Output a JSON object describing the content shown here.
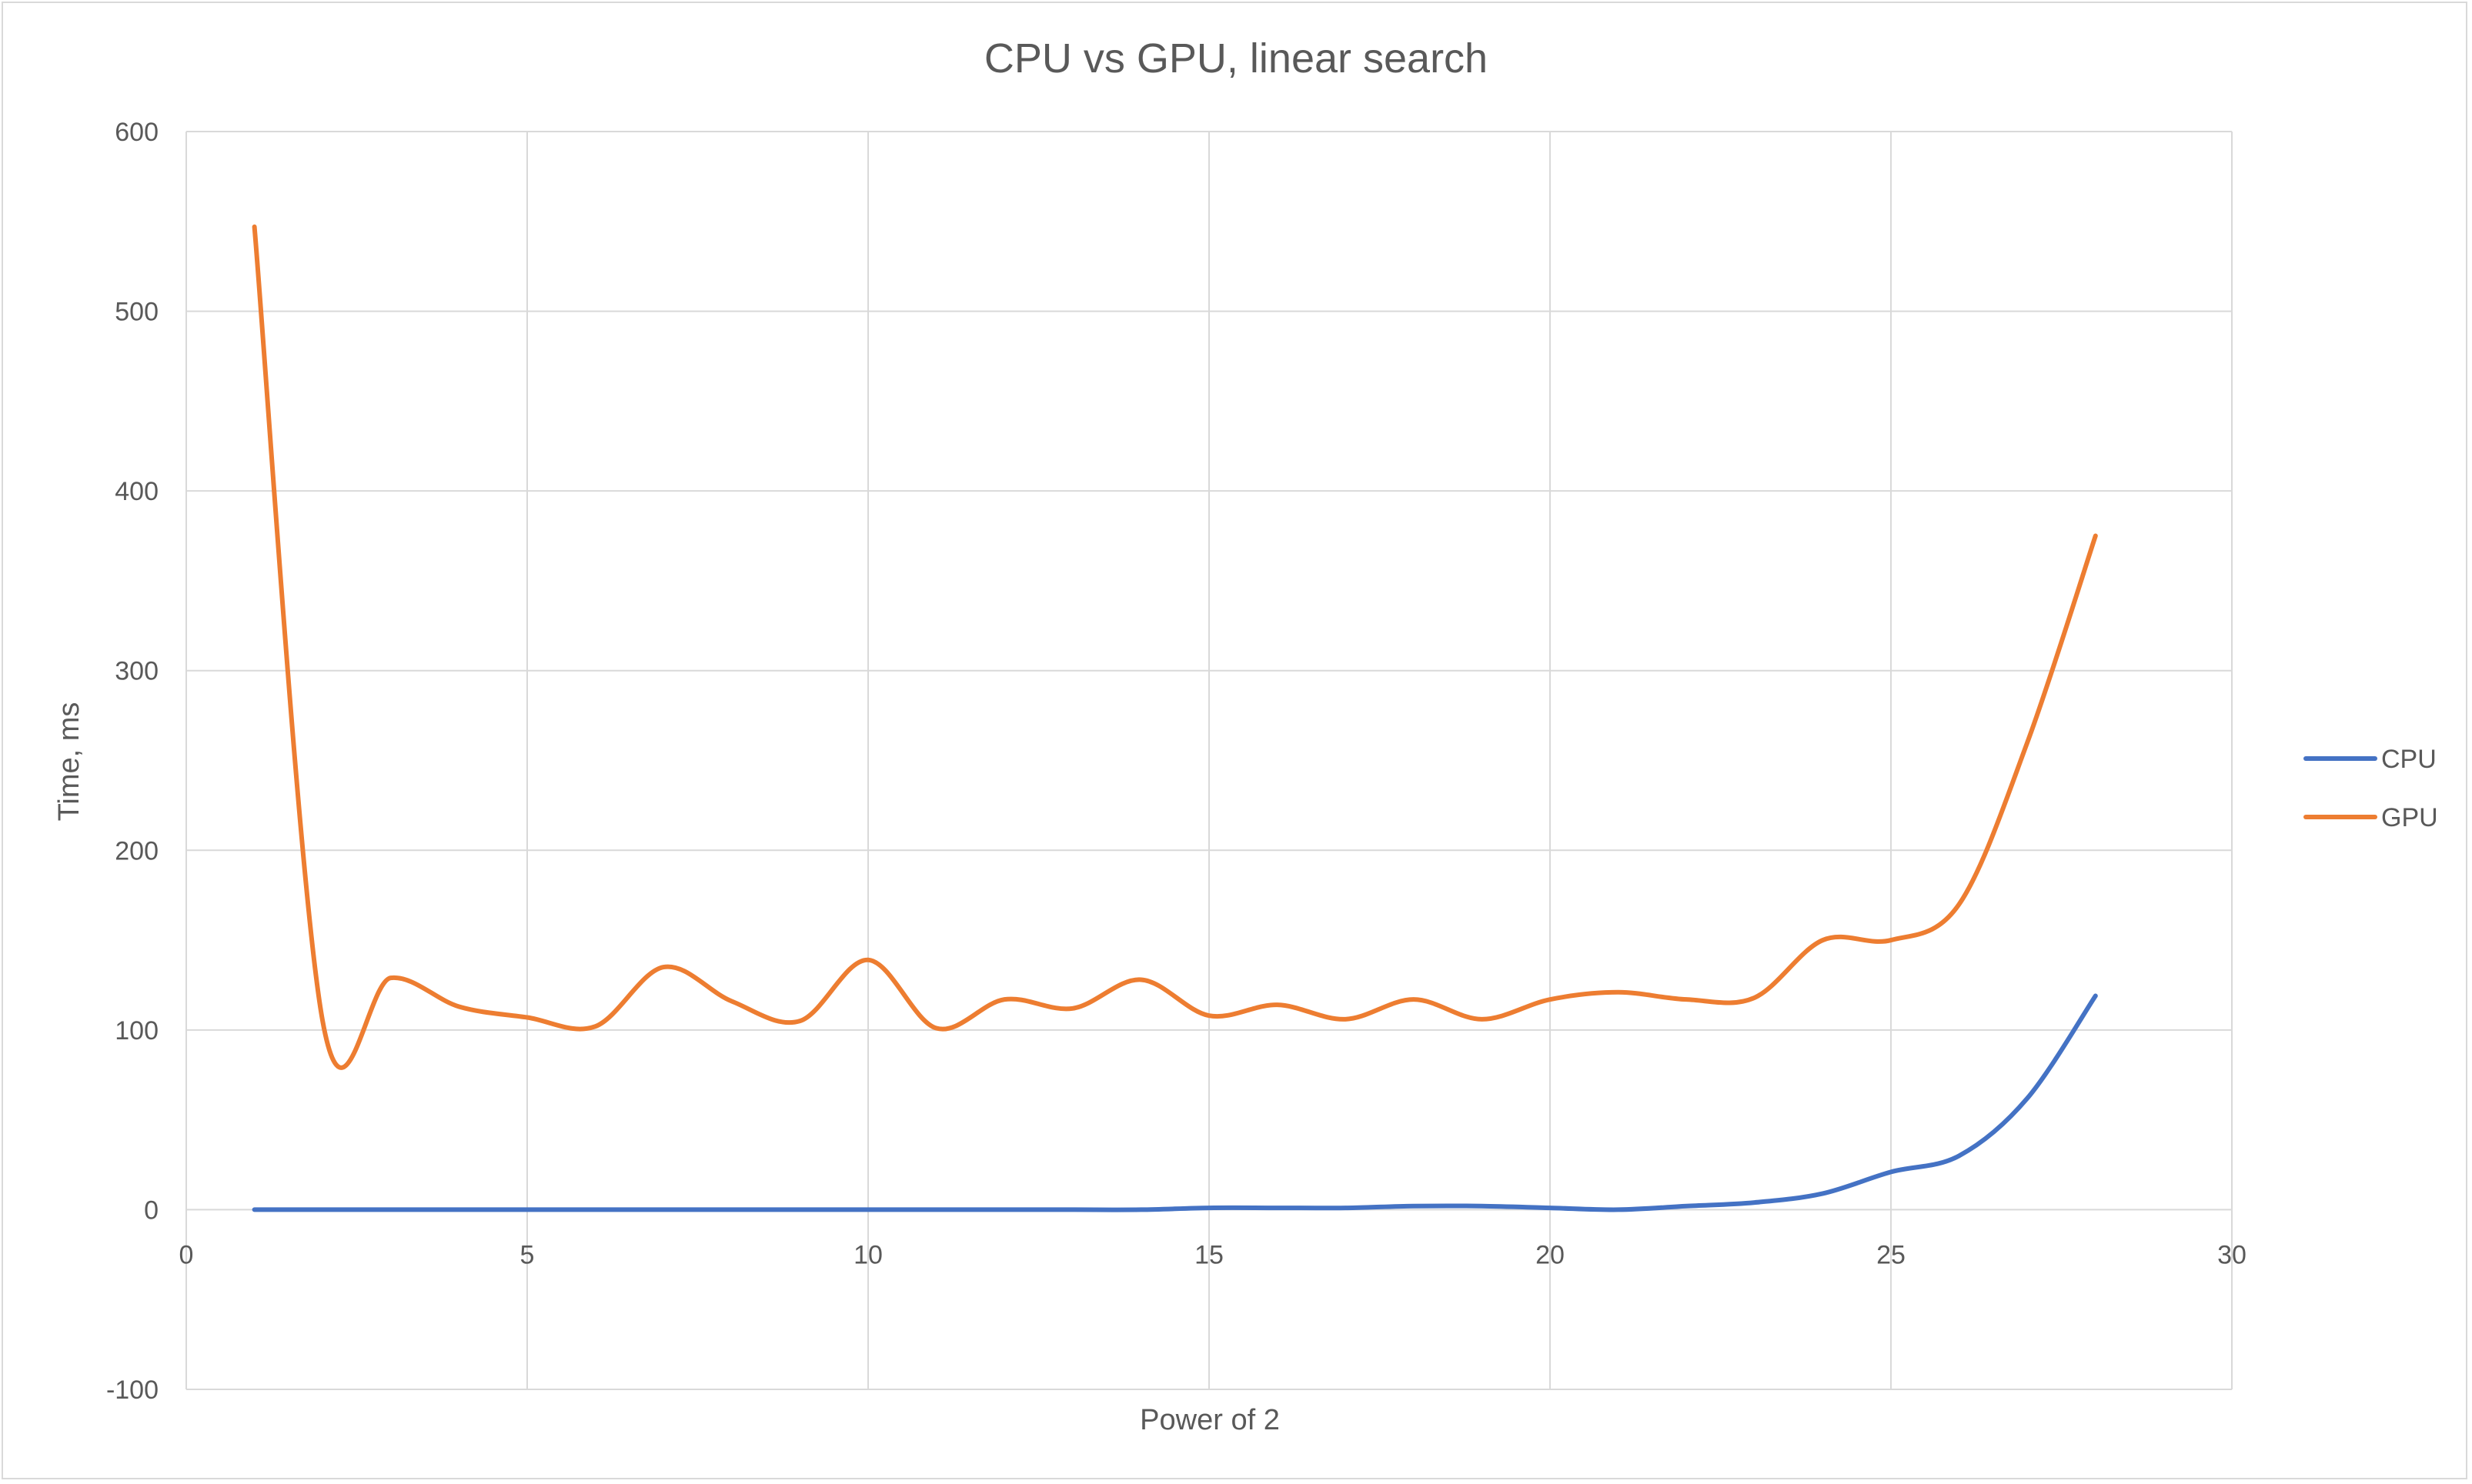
{
  "chart_data": {
    "type": "line",
    "title": "CPU vs GPU, linear search",
    "xlabel": "Power of 2",
    "ylabel": "Time, ms",
    "xlim": [
      0,
      30
    ],
    "ylim": [
      -100,
      600
    ],
    "x_ticks": [
      0,
      5,
      10,
      15,
      20,
      25,
      30
    ],
    "y_ticks": [
      -100,
      0,
      100,
      200,
      300,
      400,
      500,
      600
    ],
    "x_tick_labels": [
      "0",
      "5",
      "10",
      "15",
      "20",
      "25",
      "30"
    ],
    "y_tick_labels": [
      "-100",
      "0",
      "100",
      "200",
      "300",
      "400",
      "500",
      "600"
    ],
    "grid": true,
    "legend_position": "right",
    "smooth": true,
    "x": [
      1,
      2,
      3,
      4,
      5,
      6,
      7,
      8,
      9,
      10,
      11,
      12,
      13,
      14,
      15,
      16,
      17,
      18,
      19,
      20,
      21,
      22,
      23,
      24,
      25,
      26,
      27,
      28
    ],
    "series": [
      {
        "name": "CPU",
        "color": "#4472c4",
        "values": [
          0,
          0,
          0,
          0,
          0,
          0,
          0,
          0,
          0,
          0,
          0,
          0,
          0,
          0,
          1,
          1,
          1,
          2,
          2,
          1,
          0,
          2,
          4,
          9,
          21,
          30,
          62,
          119
        ]
      },
      {
        "name": "GPU",
        "color": "#ed7d31",
        "values": [
          547,
          105,
          129,
          113,
          107,
          102,
          135,
          116,
          105,
          139,
          101,
          117,
          112,
          128,
          108,
          114,
          106,
          117,
          106,
          117,
          121,
          117,
          118,
          150,
          150,
          170,
          260,
          375
        ]
      }
    ]
  }
}
